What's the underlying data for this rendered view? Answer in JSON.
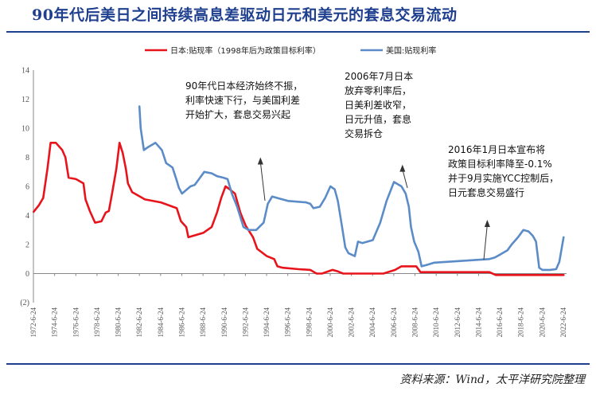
{
  "header": {
    "title": "90年代后美日之间持续高息差驱动日元和美元的套息交易流动"
  },
  "footer": {
    "source": "资料来源：Wind，太平洋研究院整理"
  },
  "chart_data": {
    "type": "line",
    "ylim": [
      -2,
      14
    ],
    "yticks": [
      14,
      12,
      10,
      8,
      6,
      4,
      2,
      0
    ],
    "neg_tick_label": "(2)",
    "x_range": [
      1972.48,
      2022.48
    ],
    "xticks": [
      "1972-6-24",
      "1974-6-24",
      "1976-6-24",
      "1978-6-24",
      "1980-6-24",
      "1982-6-24",
      "1984-6-24",
      "1986-6-24",
      "1988-6-24",
      "1990-6-24",
      "1992-6-24",
      "1994-6-24",
      "1996-6-24",
      "1998-6-24",
      "2000-6-24",
      "2002-6-24",
      "2004-6-24",
      "2006-6-24",
      "2008-6-24",
      "2010-6-24",
      "2012-6-24",
      "2014-6-24",
      "2016-6-24",
      "2018-6-24",
      "2020-6-24",
      "2022-6-24"
    ],
    "grid": false,
    "legend_position": "top",
    "series": [
      {
        "name": "日本:贴现率（1998年后为政策目标利率）",
        "color": "#e8141c",
        "points": [
          [
            1972.5,
            4.25
          ],
          [
            1973.0,
            4.7
          ],
          [
            1973.4,
            5.2
          ],
          [
            1973.8,
            7.2
          ],
          [
            1974.1,
            9.0
          ],
          [
            1974.6,
            9.0
          ],
          [
            1975.2,
            8.5
          ],
          [
            1975.5,
            8.0
          ],
          [
            1975.8,
            6.6
          ],
          [
            1976.5,
            6.5
          ],
          [
            1977.2,
            6.2
          ],
          [
            1977.4,
            5.1
          ],
          [
            1977.8,
            4.3
          ],
          [
            1978.3,
            3.5
          ],
          [
            1978.9,
            3.6
          ],
          [
            1979.3,
            4.2
          ],
          [
            1979.6,
            4.3
          ],
          [
            1979.9,
            5.5
          ],
          [
            1980.3,
            7.2
          ],
          [
            1980.6,
            9.0
          ],
          [
            1980.9,
            8.3
          ],
          [
            1981.2,
            7.2
          ],
          [
            1981.4,
            6.2
          ],
          [
            1981.8,
            5.6
          ],
          [
            1983.0,
            5.1
          ],
          [
            1984.5,
            4.9
          ],
          [
            1986.0,
            4.5
          ],
          [
            1986.4,
            3.6
          ],
          [
            1986.9,
            3.2
          ],
          [
            1987.1,
            2.5
          ],
          [
            1988.5,
            2.8
          ],
          [
            1989.3,
            3.2
          ],
          [
            1989.8,
            4.2
          ],
          [
            1990.2,
            5.2
          ],
          [
            1990.6,
            6.0
          ],
          [
            1991.0,
            5.8
          ],
          [
            1991.5,
            5.5
          ],
          [
            1992.0,
            4.2
          ],
          [
            1992.5,
            3.3
          ],
          [
            1993.2,
            2.5
          ],
          [
            1993.6,
            1.7
          ],
          [
            1994.5,
            1.2
          ],
          [
            1995.2,
            1.0
          ],
          [
            1995.5,
            0.5
          ],
          [
            1996.0,
            0.4
          ],
          [
            1997.5,
            0.3
          ],
          [
            1998.6,
            0.25
          ],
          [
            1999.2,
            0.0
          ],
          [
            1999.7,
            0.0
          ],
          [
            2000.7,
            0.25
          ],
          [
            2001.2,
            0.15
          ],
          [
            2001.7,
            0.0
          ],
          [
            2005.5,
            0.0
          ],
          [
            2006.6,
            0.25
          ],
          [
            2007.2,
            0.5
          ],
          [
            2008.6,
            0.5
          ],
          [
            2009.0,
            0.1
          ],
          [
            2015.5,
            0.1
          ],
          [
            2016.1,
            -0.1
          ],
          [
            2022.5,
            -0.1
          ]
        ]
      },
      {
        "name": "美国:贴现利率",
        "color": "#5b8cc8",
        "points": [
          [
            1982.48,
            11.5
          ],
          [
            1982.6,
            10.0
          ],
          [
            1982.9,
            8.5
          ],
          [
            1983.3,
            8.7
          ],
          [
            1984.0,
            9.0
          ],
          [
            1984.6,
            8.5
          ],
          [
            1985.0,
            7.6
          ],
          [
            1985.6,
            7.3
          ],
          [
            1986.0,
            6.4
          ],
          [
            1986.2,
            5.9
          ],
          [
            1986.5,
            5.5
          ],
          [
            1987.3,
            6.0
          ],
          [
            1987.7,
            6.1
          ],
          [
            1988.1,
            6.5
          ],
          [
            1988.6,
            7.0
          ],
          [
            1989.3,
            6.9
          ],
          [
            1989.8,
            6.7
          ],
          [
            1990.4,
            6.6
          ],
          [
            1990.8,
            6.5
          ],
          [
            1991.2,
            5.5
          ],
          [
            1991.7,
            4.6
          ],
          [
            1992.3,
            3.2
          ],
          [
            1992.8,
            3.0
          ],
          [
            1993.5,
            3.0
          ],
          [
            1994.2,
            3.5
          ],
          [
            1994.6,
            4.8
          ],
          [
            1995.0,
            5.3
          ],
          [
            1995.5,
            5.2
          ],
          [
            1996.5,
            5.0
          ],
          [
            1998.2,
            4.9
          ],
          [
            1998.6,
            4.8
          ],
          [
            1998.9,
            4.5
          ],
          [
            1999.5,
            4.6
          ],
          [
            2000.0,
            5.2
          ],
          [
            2000.5,
            6.0
          ],
          [
            2000.9,
            5.8
          ],
          [
            2001.2,
            5.0
          ],
          [
            2001.6,
            3.2
          ],
          [
            2001.9,
            1.8
          ],
          [
            2002.2,
            1.4
          ],
          [
            2002.8,
            1.2
          ],
          [
            2003.1,
            2.2
          ],
          [
            2003.5,
            2.1
          ],
          [
            2004.5,
            2.3
          ],
          [
            2005.2,
            3.5
          ],
          [
            2005.8,
            5.0
          ],
          [
            2006.5,
            6.3
          ],
          [
            2007.2,
            6.0
          ],
          [
            2007.6,
            5.5
          ],
          [
            2007.9,
            4.6
          ],
          [
            2008.1,
            3.2
          ],
          [
            2008.4,
            2.2
          ],
          [
            2008.8,
            1.5
          ],
          [
            2009.1,
            0.5
          ],
          [
            2009.6,
            0.6
          ],
          [
            2010.3,
            0.75
          ],
          [
            2015.5,
            1.0
          ],
          [
            2016.0,
            1.1
          ],
          [
            2016.5,
            1.3
          ],
          [
            2017.2,
            1.6
          ],
          [
            2017.6,
            2.0
          ],
          [
            2018.2,
            2.5
          ],
          [
            2018.7,
            3.0
          ],
          [
            2019.2,
            2.9
          ],
          [
            2019.6,
            2.6
          ],
          [
            2019.9,
            2.2
          ],
          [
            2020.2,
            0.4
          ],
          [
            2020.5,
            0.25
          ],
          [
            2021.2,
            0.25
          ],
          [
            2021.8,
            0.3
          ],
          [
            2022.1,
            0.8
          ],
          [
            2022.5,
            2.5
          ]
        ]
      }
    ],
    "annotations": [
      {
        "lines": [
          "90年代日本经济始终不振，",
          "利率快速下行，与美国利差",
          "开始扩大，套息交易兴起"
        ],
        "arrow_to": [
          1993.9,
          8.0
        ]
      },
      {
        "lines": [
          "2006年7月日本",
          "放弃零利率后，",
          "日美利差收窄，",
          "日元升值，套息",
          "交易拆仓"
        ],
        "arrow_to": [
          2007.3,
          7.5
        ]
      },
      {
        "lines": [
          "2016年1月日本宣布将",
          "政策目标利率降至-0.1%",
          "并于9月实施YCC控制后，",
          "日元套息交易盛行"
        ],
        "arrow_to": [
          2015.3,
          3.7
        ]
      }
    ]
  }
}
